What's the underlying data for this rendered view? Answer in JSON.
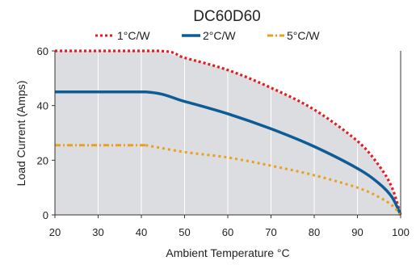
{
  "chart_data": {
    "type": "line",
    "title": "DC60D60",
    "xlabel": "Ambient Temperature °C",
    "ylabel": "Load Current (Amps)",
    "xlim": [
      20,
      100
    ],
    "ylim": [
      0,
      60
    ],
    "xticks": [
      20,
      30,
      40,
      50,
      60,
      70,
      80,
      90,
      100
    ],
    "yticks": [
      0,
      20,
      40,
      60
    ],
    "grid": true,
    "legend_position": "top",
    "shaded_area_under": "1°C/W",
    "colors": {
      "area_fill": "#dcdde0",
      "grid": "#ffffff",
      "axis": "#333333"
    },
    "series": [
      {
        "name": "1°C/W",
        "color": "#e31b23",
        "style": "dotted",
        "points": [
          [
            20,
            60
          ],
          [
            44,
            60
          ],
          [
            50,
            57.5
          ],
          [
            60,
            53
          ],
          [
            70,
            46.5
          ],
          [
            80,
            38.5
          ],
          [
            90,
            27
          ],
          [
            95,
            18
          ],
          [
            98,
            10
          ],
          [
            100,
            0
          ]
        ]
      },
      {
        "name": "2°C/W",
        "color": "#0e5c96",
        "style": "solid",
        "points": [
          [
            20,
            45
          ],
          [
            41,
            45
          ],
          [
            50,
            41.5
          ],
          [
            60,
            37
          ],
          [
            70,
            31.5
          ],
          [
            80,
            25
          ],
          [
            90,
            17
          ],
          [
            95,
            11.5
          ],
          [
            98,
            6.5
          ],
          [
            100,
            0
          ]
        ]
      },
      {
        "name": "5°C/W",
        "color": "#e8a01e",
        "style": "dashdot-then-dotted",
        "points": [
          [
            20,
            25.5
          ],
          [
            41,
            25.5
          ],
          [
            50,
            23
          ],
          [
            60,
            21
          ],
          [
            70,
            18
          ],
          [
            80,
            14.5
          ],
          [
            90,
            10
          ],
          [
            95,
            6.5
          ],
          [
            98,
            3.5
          ],
          [
            100,
            0
          ]
        ]
      }
    ]
  }
}
